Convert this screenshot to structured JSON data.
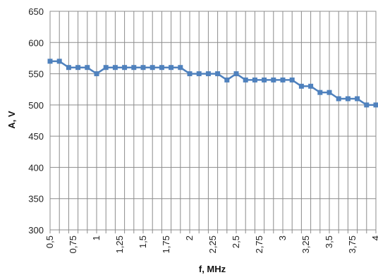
{
  "chart_data": {
    "type": "line",
    "xlabel": "f, MHz",
    "ylabel": "A, V",
    "ylim": [
      300,
      650
    ],
    "xlim": [
      0.5,
      4
    ],
    "grid": true,
    "y_ticks": [
      {
        "value": 300,
        "label": "300"
      },
      {
        "value": 350,
        "label": "350"
      },
      {
        "value": 400,
        "label": "400"
      },
      {
        "value": 450,
        "label": "450"
      },
      {
        "value": 500,
        "label": "500"
      },
      {
        "value": 550,
        "label": "550"
      },
      {
        "value": 600,
        "label": "600"
      },
      {
        "value": 650,
        "label": "650"
      }
    ],
    "x_ticks": [
      {
        "value": 0.5,
        "label": "0,5"
      },
      {
        "value": 0.75,
        "label": "0,75"
      },
      {
        "value": 1.0,
        "label": "1"
      },
      {
        "value": 1.25,
        "label": "1,25"
      },
      {
        "value": 1.5,
        "label": "1,5"
      },
      {
        "value": 1.75,
        "label": "1,75"
      },
      {
        "value": 2.0,
        "label": "2"
      },
      {
        "value": 2.25,
        "label": "2,25"
      },
      {
        "value": 2.5,
        "label": "2,5"
      },
      {
        "value": 2.75,
        "label": "2,75"
      },
      {
        "value": 3.0,
        "label": "3"
      },
      {
        "value": 3.25,
        "label": "3,25"
      },
      {
        "value": 3.5,
        "label": "3,5"
      },
      {
        "value": 3.75,
        "label": "3,75"
      },
      {
        "value": 4.0,
        "label": "4"
      }
    ],
    "series_color": "#4f81bd",
    "x": [
      0.5,
      0.6,
      0.7,
      0.8,
      0.9,
      1.0,
      1.1,
      1.2,
      1.3,
      1.4,
      1.5,
      1.6,
      1.7,
      1.8,
      1.9,
      2.0,
      2.1,
      2.2,
      2.3,
      2.4,
      2.5,
      2.6,
      2.7,
      2.8,
      2.9,
      3.0,
      3.1,
      3.2,
      3.3,
      3.4,
      3.5,
      3.6,
      3.7,
      3.8,
      3.9,
      4.0
    ],
    "values": [
      570,
      570,
      560,
      560,
      560,
      550,
      560,
      560,
      560,
      560,
      560,
      560,
      560,
      560,
      560,
      550,
      550,
      550,
      550,
      540,
      550,
      540,
      540,
      540,
      540,
      540,
      540,
      530,
      530,
      520,
      520,
      510,
      510,
      510,
      500,
      500
    ]
  }
}
